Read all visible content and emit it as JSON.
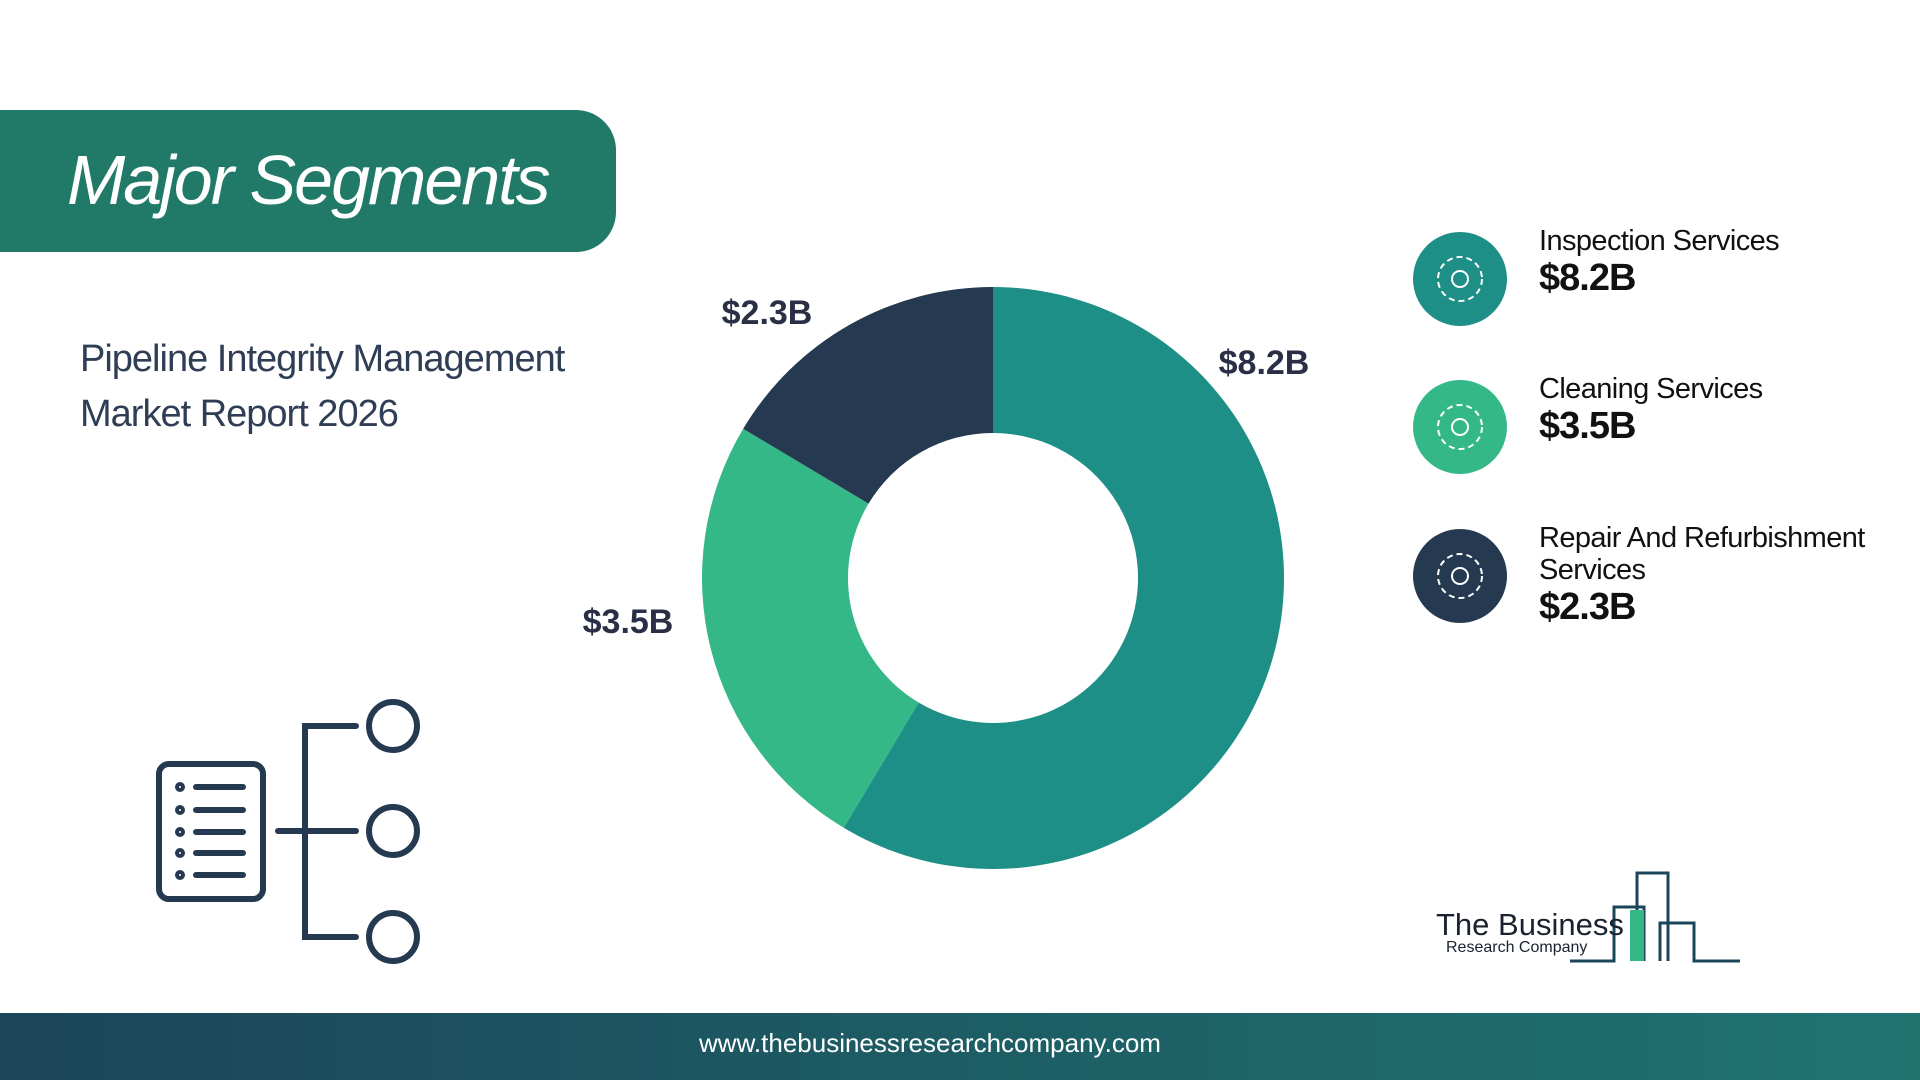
{
  "chart_data": {
    "type": "donut",
    "title": "Major Segments",
    "subtitle": "Pipeline Integrity Management Market Report 2026",
    "categories": [
      "Inspection Services",
      "Cleaning Services",
      "Repair And Refurbishment Services"
    ],
    "values": [
      8.2,
      3.5,
      2.3
    ],
    "value_labels": [
      "$8.2B",
      "$3.5B",
      "$2.3B"
    ],
    "colors": [
      "#1e8f86",
      "#34b888",
      "#253a50"
    ]
  },
  "logo": {
    "line1": "The Business",
    "line2": "Research Company"
  },
  "footer": {
    "url": "www.thebusinessresearchcompany.com"
  }
}
